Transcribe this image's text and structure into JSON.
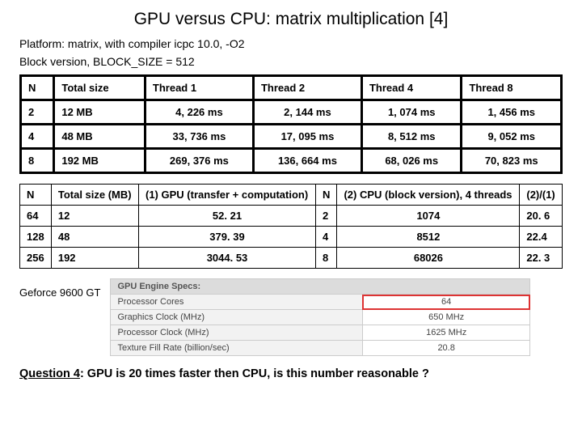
{
  "title": "GPU versus CPU: matrix multiplication [4]",
  "subtitle1": "Platform: matrix, with compiler icpc 10.0, -O2",
  "subtitle2": "Block version, BLOCK_SIZE = 512",
  "table1": {
    "headers": [
      "N",
      "Total size",
      "Thread 1",
      "Thread 2",
      "Thread 4",
      "Thread 8"
    ],
    "rows": [
      [
        "2",
        "12 MB",
        "4, 226 ms",
        "2, 144 ms",
        "1, 074 ms",
        "1, 456 ms"
      ],
      [
        "4",
        "48 MB",
        "33, 736 ms",
        "17, 095 ms",
        "8, 512 ms",
        "9, 052 ms"
      ],
      [
        "8",
        "192 MB",
        "269, 376 ms",
        "136, 664 ms",
        "68, 026 ms",
        "70, 823 ms"
      ]
    ]
  },
  "table2": {
    "headers": [
      "N",
      "Total size (MB)",
      "(1) GPU (transfer + computation)",
      "N",
      "(2) CPU (block version), 4 threads",
      "(2)/(1)"
    ],
    "rows": [
      [
        "64",
        "12",
        "52. 21",
        "2",
        "1074",
        "20. 6"
      ],
      [
        "128",
        "48",
        "379. 39",
        "4",
        "8512",
        "22.4"
      ],
      [
        "256",
        "192",
        "3044. 53",
        "8",
        "68026",
        "22. 3"
      ]
    ]
  },
  "gpu_label": "Geforce 9600 GT",
  "specs": {
    "header": "GPU Engine Specs:",
    "rows": [
      {
        "label": "Processor Cores",
        "value": "64",
        "highlight": true
      },
      {
        "label": "Graphics Clock (MHz)",
        "value": "650 MHz",
        "highlight": false
      },
      {
        "label": "Processor Clock (MHz)",
        "value": "1625 MHz",
        "highlight": false
      },
      {
        "label": "Texture Fill Rate (billion/sec)",
        "value": "20.8",
        "highlight": false
      }
    ]
  },
  "question": {
    "prefix": "Question 4",
    "text": ": GPU is 20 times faster then CPU, is this number reasonable ?"
  }
}
